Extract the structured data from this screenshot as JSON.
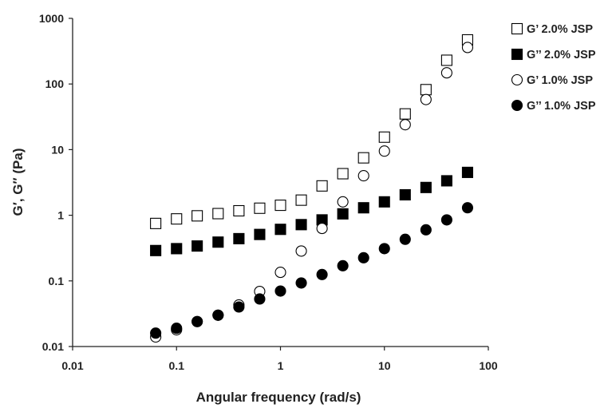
{
  "chart_data": {
    "type": "scatter",
    "title": "",
    "xlabel": "Angular frequency (rad/s)",
    "ylabel": "G′, G′′ (Pa)",
    "xscale": "log",
    "yscale": "log",
    "xlim": [
      0.01,
      100
    ],
    "ylim": [
      0.01,
      1000
    ],
    "xticks": [
      "0.01",
      "0.1",
      "1",
      "10",
      "100"
    ],
    "yticks": [
      "0.01",
      "0.1",
      "1",
      "10",
      "100",
      "1000"
    ],
    "grid": false,
    "legend_position": "right",
    "x": [
      0.063,
      0.1,
      0.158,
      0.251,
      0.398,
      0.631,
      1.0,
      1.585,
      2.512,
      3.981,
      6.31,
      10.0,
      15.85,
      25.12,
      39.81,
      63.1
    ],
    "series": [
      {
        "name": "G’ 2.0% JSP",
        "marker": "square-open",
        "values": [
          0.75,
          0.88,
          0.98,
          1.06,
          1.17,
          1.28,
          1.42,
          1.7,
          2.8,
          4.3,
          7.5,
          15.5,
          35,
          82,
          230,
          470
        ]
      },
      {
        "name": "G’’ 2.0% JSP",
        "marker": "square-filled",
        "values": [
          0.29,
          0.31,
          0.34,
          0.39,
          0.44,
          0.51,
          0.61,
          0.72,
          0.85,
          1.05,
          1.3,
          1.6,
          2.05,
          2.65,
          3.35,
          4.5
        ]
      },
      {
        "name": "G’ 1.0% JSP",
        "marker": "circle-open",
        "values": [
          0.014,
          0.018,
          0.024,
          0.03,
          0.043,
          0.069,
          0.135,
          0.285,
          0.63,
          1.6,
          4.0,
          9.5,
          24,
          58,
          148,
          360
        ]
      },
      {
        "name": "G’’ 1.0% JSP",
        "marker": "circle-filled",
        "values": [
          0.016,
          0.019,
          0.024,
          0.03,
          0.04,
          0.053,
          0.07,
          0.093,
          0.125,
          0.17,
          0.225,
          0.31,
          0.43,
          0.6,
          0.85,
          1.3
        ]
      }
    ],
    "colors": {
      "axis": "#222222",
      "marker": "#000000"
    }
  }
}
